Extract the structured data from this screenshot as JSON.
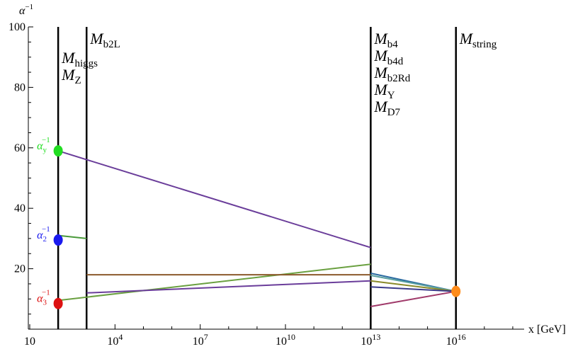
{
  "chart_data": {
    "type": "line",
    "title": "",
    "ylabel": "α",
    "ylabel_sup": "−1",
    "xlabel": "x [GeV]",
    "x_scale": "log10",
    "xlim_log10": [
      0.95,
      18.4
    ],
    "ylim": [
      0,
      100
    ],
    "x_ticks": [
      {
        "base": "10",
        "exp": ""
      },
      {
        "base": "10",
        "exp": "4"
      },
      {
        "base": "10",
        "exp": "7"
      },
      {
        "base": "10",
        "exp": "10"
      },
      {
        "base": "10",
        "exp": "13"
      },
      {
        "base": "10",
        "exp": "16"
      }
    ],
    "x_tick_positions_log10": [
      1,
      4,
      7,
      10,
      13,
      16
    ],
    "y_ticks": [
      "100",
      "80",
      "60",
      "40",
      "20"
    ],
    "y_tick_values": [
      100,
      80,
      60,
      40,
      20
    ],
    "vertical_lines": [
      {
        "x_log10": 2.0,
        "labels": [
          {
            "main": "M",
            "sub": "higgs"
          },
          {
            "main": "M",
            "sub": "Z"
          }
        ]
      },
      {
        "x_log10": 3.0,
        "labels": [
          {
            "main": "M",
            "sub": "b2L"
          }
        ]
      },
      {
        "x_log10": 13.0,
        "labels": [
          {
            "main": "M",
            "sub": "b4"
          },
          {
            "main": "M",
            "sub": "b4d"
          },
          {
            "main": "M",
            "sub": "b2Rd"
          },
          {
            "main": "M",
            "sub": "Y",
            "italic_sub": true
          },
          {
            "main": "M",
            "sub": "D7"
          }
        ]
      },
      {
        "x_log10": 16.0,
        "labels": [
          {
            "main": "M",
            "sub": "string"
          }
        ]
      }
    ],
    "points": [
      {
        "label": "α",
        "label_sub": "y",
        "label_sup": "−1",
        "x_log10": 2.0,
        "y": 59,
        "color": "#22dd22"
      },
      {
        "label": "α",
        "label_sub": "2",
        "label_sup": "−1",
        "x_log10": 2.0,
        "y": 29.5,
        "color": "#1a1aee"
      },
      {
        "label": "α",
        "label_sub": "3",
        "label_sup": "−1",
        "x_log10": 2.0,
        "y": 8.5,
        "color": "#dd1111"
      },
      {
        "label": "",
        "x_log10": 16.0,
        "y": 12.5,
        "color": "#ff8c1a"
      }
    ],
    "series": [
      {
        "values": [
          [
            2.0,
            59
          ],
          [
            13.0,
            27
          ]
        ],
        "color": "#6a3d9a"
      },
      {
        "values": [
          [
            2.0,
            31
          ],
          [
            3.0,
            30
          ]
        ],
        "color": "#4a9a3a"
      },
      {
        "values": [
          [
            2.0,
            9.5
          ],
          [
            13.0,
            21.5
          ]
        ],
        "color": "#6aa040"
      },
      {
        "values": [
          [
            3.0,
            18
          ],
          [
            13.0,
            18
          ]
        ],
        "color": "#8b5a2b"
      },
      {
        "values": [
          [
            3.0,
            12
          ],
          [
            13.0,
            16
          ]
        ],
        "color": "#6a3d9a"
      },
      {
        "values": [
          [
            13.0,
            18.5
          ],
          [
            16.0,
            12.5
          ]
        ],
        "color": "#2a6aa0"
      },
      {
        "values": [
          [
            13.0,
            17.8
          ],
          [
            16.0,
            12.5
          ]
        ],
        "color": "#5aa0a0"
      },
      {
        "values": [
          [
            13.0,
            16
          ],
          [
            16.0,
            12.5
          ]
        ],
        "color": "#8a8a2a"
      },
      {
        "values": [
          [
            13.0,
            14
          ],
          [
            16.0,
            12.5
          ]
        ],
        "color": "#3a3a8a"
      },
      {
        "values": [
          [
            13.0,
            7.5
          ],
          [
            16.0,
            12.5
          ]
        ],
        "color": "#a03a6a"
      }
    ]
  }
}
